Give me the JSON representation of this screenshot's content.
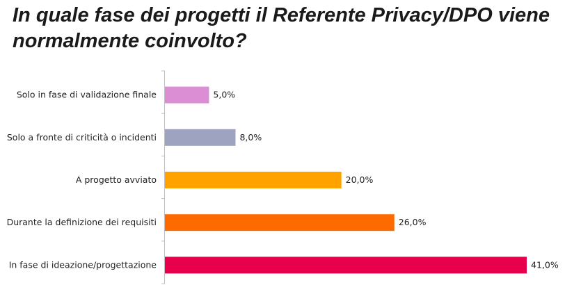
{
  "chart_data": {
    "type": "bar",
    "orientation": "horizontal",
    "title": "In quale fase dei progetti il Referente Privacy/DPO viene normalmente coinvolto?",
    "categories": [
      "Solo in fase di validazione finale",
      "Solo a fronte di criticità o incidenti",
      "A progetto avviato",
      "Durante la definizione dei requisiti",
      "In fase di ideazione/progettazione"
    ],
    "values": [
      5.0,
      8.0,
      20.0,
      26.0,
      41.0
    ],
    "value_labels": [
      "5,0%",
      "8,0%",
      "20,0%",
      "26,0%",
      "41,0%"
    ],
    "colors": [
      "#dc8ed4",
      "#9ea4c0",
      "#ffa200",
      "#ff6a00",
      "#e8004d"
    ],
    "xlim": [
      0,
      41
    ],
    "grid": false,
    "legend": "none"
  }
}
